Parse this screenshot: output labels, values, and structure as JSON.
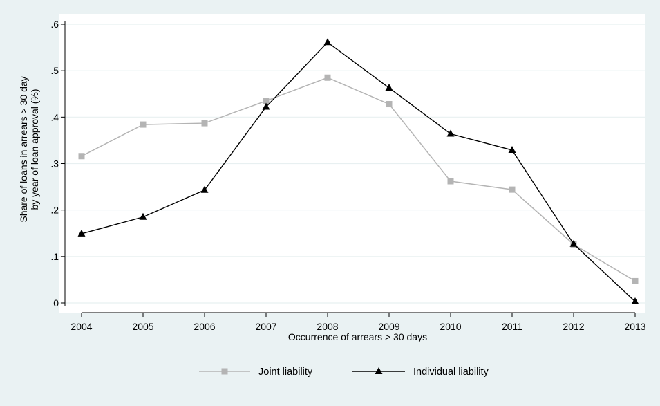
{
  "chart_data": {
    "type": "line",
    "title": "",
    "xlabel": "Occurrence of arrears > 30 days",
    "ylabel_lines": [
      "Share of loans in arrears > 30 day",
      "by year of loan approval (%)"
    ],
    "x": [
      2004,
      2005,
      2006,
      2007,
      2008,
      2009,
      2010,
      2011,
      2012,
      2013
    ],
    "x_tick_labels": [
      "2004",
      "2005",
      "2006",
      "2007",
      "2008",
      "2009",
      "2010",
      "2011",
      "2012",
      "2013"
    ],
    "ylim": [
      0,
      0.6
    ],
    "y_ticks": [
      0,
      0.1,
      0.2,
      0.3,
      0.4,
      0.5,
      0.6
    ],
    "y_tick_labels": [
      "0",
      ".1",
      ".2",
      ".3",
      ".4",
      ".5",
      ".6"
    ],
    "grid": true,
    "legend_position": "bottom-center",
    "series": [
      {
        "name": "Joint liability",
        "marker": "square",
        "color": "#b4b4b4",
        "values": [
          0.316,
          0.384,
          0.387,
          0.435,
          0.485,
          0.428,
          0.262,
          0.244,
          0.126,
          0.047
        ]
      },
      {
        "name": "Individual liability",
        "marker": "triangle",
        "color": "#000000",
        "values": [
          0.149,
          0.185,
          0.243,
          0.422,
          0.561,
          0.463,
          0.364,
          0.329,
          0.127,
          0.003
        ]
      }
    ]
  },
  "colors": {
    "background": "#eaf2f3",
    "plot_background": "#ffffff",
    "grid": "#e8f0f1"
  }
}
